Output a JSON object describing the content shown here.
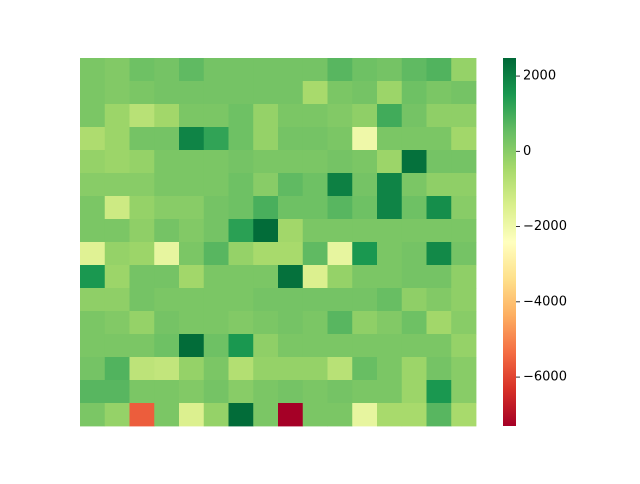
{
  "chart_data": {
    "type": "heatmap",
    "colormap": "RdYlGn",
    "clim": [
      -7300,
      2480
    ],
    "cticks": [
      {
        "value": -6000,
        "label": "−6000"
      },
      {
        "value": -4000,
        "label": "−4000"
      },
      {
        "value": -2000,
        "label": "−2000"
      },
      0,
      2000
    ],
    "values": [
      [
        200,
        100,
        400,
        300,
        600,
        300,
        300,
        300,
        300,
        300,
        700,
        400,
        300,
        600,
        800,
        -200
      ],
      [
        200,
        100,
        200,
        300,
        300,
        300,
        300,
        300,
        300,
        -500,
        200,
        300,
        -300,
        400,
        200,
        300
      ],
      [
        200,
        -300,
        -800,
        -400,
        200,
        200,
        400,
        -200,
        200,
        200,
        100,
        -100,
        1000,
        300,
        -100,
        -100
      ],
      [
        -600,
        -300,
        300,
        300,
        1900,
        1200,
        400,
        -200,
        300,
        300,
        200,
        -2000,
        200,
        200,
        200,
        -400
      ],
      [
        -200,
        -300,
        -200,
        200,
        200,
        200,
        300,
        200,
        200,
        200,
        300,
        200,
        -300,
        2300,
        300,
        300
      ],
      [
        0,
        0,
        0,
        200,
        200,
        200,
        400,
        0,
        600,
        400,
        2000,
        300,
        1900,
        200,
        -100,
        -100
      ],
      [
        200,
        -1200,
        -200,
        0,
        0,
        300,
        400,
        900,
        400,
        400,
        700,
        400,
        1900,
        400,
        1700,
        0
      ],
      [
        200,
        200,
        -100,
        300,
        100,
        300,
        1300,
        2400,
        -400,
        200,
        200,
        200,
        200,
        200,
        200,
        200
      ],
      [
        -1600,
        -200,
        -300,
        -1800,
        200,
        700,
        -200,
        -500,
        -500,
        600,
        -1800,
        1500,
        200,
        300,
        1800,
        300
      ],
      [
        1500,
        -300,
        300,
        300,
        -400,
        200,
        200,
        200,
        2300,
        -1500,
        -200,
        200,
        200,
        300,
        300,
        -100
      ],
      [
        -100,
        -100,
        300,
        200,
        200,
        200,
        200,
        300,
        300,
        300,
        300,
        300,
        500,
        -100,
        100,
        -100
      ],
      [
        200,
        100,
        -200,
        300,
        200,
        200,
        100,
        200,
        300,
        200,
        700,
        -100,
        100,
        400,
        -400,
        0
      ],
      [
        200,
        200,
        200,
        400,
        2400,
        400,
        1500,
        -100,
        200,
        200,
        200,
        200,
        200,
        200,
        200,
        -200
      ],
      [
        300,
        800,
        -900,
        -1000,
        -200,
        200,
        -700,
        -200,
        -200,
        -200,
        -800,
        500,
        200,
        -300,
        300,
        0
      ],
      [
        700,
        700,
        200,
        200,
        100,
        300,
        0,
        200,
        300,
        200,
        300,
        200,
        200,
        -300,
        1500,
        0
      ],
      [
        200,
        -200,
        -5600,
        200,
        -1500,
        -200,
        2400,
        200,
        -7300,
        200,
        200,
        -1800,
        -500,
        -500,
        700,
        -500
      ]
    ]
  }
}
